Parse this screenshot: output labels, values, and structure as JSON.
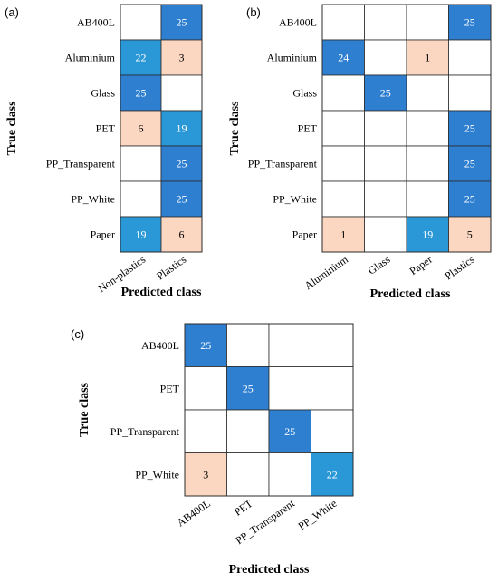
{
  "chart_data": [
    {
      "type": "heatmap",
      "panel_label": "(a)",
      "xlabel": "Predicted class",
      "ylabel": "True class",
      "rows": [
        "AB400L",
        "Aluminium",
        "Glass",
        "PET",
        "PP_Transparent",
        "PP_White",
        "Paper"
      ],
      "columns": [
        "Non-plastics",
        "Plastics"
      ],
      "values": [
        [
          null,
          25
        ],
        [
          22,
          3
        ],
        [
          25,
          null
        ],
        [
          6,
          19
        ],
        [
          null,
          25
        ],
        [
          null,
          25
        ],
        [
          19,
          6
        ]
      ],
      "colors": {
        "high": "#2f7fd0",
        "mid": "#2a97d6",
        "low": "#fbd7c2",
        "empty": "#ffffff"
      }
    },
    {
      "type": "heatmap",
      "panel_label": "(b)",
      "xlabel": "Predicted class",
      "ylabel": "True class",
      "rows": [
        "AB400L",
        "Aluminium",
        "Glass",
        "PET",
        "PP_Transparent",
        "PP_White",
        "Paper"
      ],
      "columns": [
        "Aluminium",
        "Glass",
        "Paper",
        "Plastics"
      ],
      "values": [
        [
          null,
          null,
          null,
          25
        ],
        [
          24,
          null,
          1,
          null
        ],
        [
          null,
          25,
          null,
          null
        ],
        [
          null,
          null,
          null,
          25
        ],
        [
          null,
          null,
          null,
          25
        ],
        [
          null,
          null,
          null,
          25
        ],
        [
          1,
          null,
          19,
          5
        ]
      ],
      "colors": {
        "high": "#2f7fd0",
        "mid": "#2a97d6",
        "low": "#fbd7c2",
        "empty": "#ffffff"
      }
    },
    {
      "type": "heatmap",
      "panel_label": "(c)",
      "xlabel": "Predicted class",
      "ylabel": "True class",
      "rows": [
        "AB400L",
        "PET",
        "PP_Transparent",
        "PP_White"
      ],
      "columns": [
        "AB400L",
        "PET",
        "PP_Transparent",
        "PP_White"
      ],
      "values": [
        [
          25,
          null,
          null,
          null
        ],
        [
          null,
          25,
          null,
          null
        ],
        [
          null,
          null,
          25,
          null
        ],
        [
          3,
          null,
          null,
          22
        ]
      ],
      "colors": {
        "high": "#2f7fd0",
        "mid": "#2a97d6",
        "low": "#fbd7c2",
        "empty": "#ffffff"
      }
    }
  ]
}
